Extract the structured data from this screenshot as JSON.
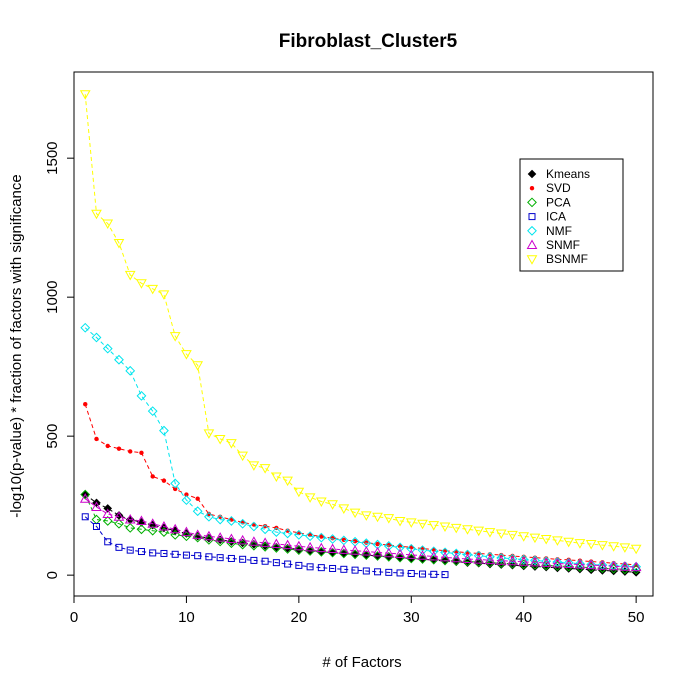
{
  "chart_data": {
    "type": "line",
    "title": "Fibroblast_Cluster5",
    "xlabel": "# of Factors",
    "ylabel": "-log10(p-value) * fraction of factors with significance",
    "xlim": [
      0,
      51.5
    ],
    "ylim": [
      -75,
      1810
    ],
    "xticks": [
      0,
      10,
      20,
      30,
      40,
      50
    ],
    "yticks": [
      0,
      500,
      1000,
      1500
    ],
    "grid": false,
    "legend_position": "top-right",
    "series": [
      {
        "name": "Kmeans",
        "color": "#000000",
        "marker": "diamond",
        "x": [
          1,
          2,
          3,
          4,
          5,
          6,
          7,
          8,
          9,
          10,
          11,
          12,
          13,
          14,
          15,
          16,
          17,
          18,
          19,
          20,
          21,
          22,
          23,
          24,
          25,
          26,
          27,
          28,
          29,
          30,
          31,
          32,
          33,
          34,
          35,
          36,
          37,
          38,
          39,
          40,
          41,
          42,
          43,
          44,
          45,
          46,
          47,
          48,
          49,
          50
        ],
        "values": [
          290,
          260,
          240,
          215,
          200,
          190,
          180,
          170,
          160,
          150,
          140,
          133,
          127,
          121,
          116,
          111,
          106,
          101,
          97,
          93,
          89,
          85,
          81,
          78,
          75,
          72,
          69,
          66,
          63,
          60,
          57,
          54,
          51,
          48,
          45,
          43,
          40,
          38,
          36,
          33,
          31,
          29,
          26,
          24,
          22,
          19,
          17,
          15,
          13,
          10
        ]
      },
      {
        "name": "SVD",
        "color": "#ff0000",
        "marker": "dot",
        "x": [
          1,
          2,
          3,
          4,
          5,
          6,
          7,
          8,
          9,
          10,
          11,
          12,
          13,
          14,
          15,
          16,
          17,
          18,
          19,
          20,
          21,
          22,
          23,
          24,
          25,
          26,
          27,
          28,
          29,
          30,
          31,
          32,
          33,
          34,
          35,
          36,
          37,
          38,
          39,
          40,
          41,
          42,
          43,
          44,
          45,
          46,
          47,
          48,
          49,
          50
        ],
        "values": [
          615,
          490,
          465,
          455,
          445,
          440,
          355,
          340,
          310,
          290,
          275,
          220,
          210,
          200,
          190,
          182,
          176,
          170,
          160,
          152,
          145,
          139,
          133,
          127,
          122,
          117,
          112,
          108,
          104,
          100,
          96,
          92,
          88,
          84,
          81,
          78,
          75,
          72,
          69,
          66,
          63,
          60,
          57,
          55,
          52,
          49,
          46,
          43,
          40,
          37
        ]
      },
      {
        "name": "PCA",
        "color": "#00b000",
        "marker": "diamond-open",
        "x": [
          1,
          2,
          3,
          4,
          5,
          6,
          7,
          8,
          9,
          10,
          11,
          12,
          13,
          14,
          15,
          16,
          17,
          18,
          19,
          20,
          21,
          22,
          23,
          24,
          25,
          26,
          27,
          28,
          29,
          30,
          31,
          32,
          33,
          34,
          35,
          36,
          37,
          38,
          39,
          40,
          41,
          42,
          43,
          44,
          45,
          46,
          47,
          48,
          49,
          50
        ],
        "values": [
          290,
          200,
          195,
          185,
          170,
          165,
          160,
          155,
          145,
          140,
          135,
          127,
          121,
          115,
          110,
          106,
          102,
          98,
          94,
          90,
          87,
          84,
          81,
          78,
          75,
          72,
          69,
          66,
          63,
          60,
          58,
          56,
          53,
          51,
          49,
          47,
          45,
          43,
          41,
          39,
          37,
          35,
          33,
          31,
          29,
          27,
          25,
          23,
          21,
          20
        ]
      },
      {
        "name": "ICA",
        "color": "#0000cc",
        "marker": "square-open",
        "x": [
          1,
          2,
          3,
          4,
          5,
          6,
          7,
          8,
          9,
          10,
          11,
          12,
          13,
          14,
          15,
          16,
          17,
          18,
          19,
          20,
          21,
          22,
          23,
          24,
          25,
          26,
          27,
          28,
          29,
          30,
          31,
          32,
          33
        ],
        "values": [
          210,
          175,
          120,
          100,
          90,
          85,
          80,
          78,
          75,
          72,
          70,
          66,
          63,
          60,
          57,
          53,
          50,
          45,
          40,
          35,
          30,
          27,
          24,
          21,
          18,
          15,
          12,
          10,
          8,
          6,
          4,
          3,
          2
        ]
      },
      {
        "name": "NMF",
        "color": "#00e5ee",
        "marker": "diamond-open",
        "x": [
          1,
          2,
          3,
          4,
          5,
          6,
          7,
          8,
          9,
          10,
          11,
          12,
          13,
          14,
          15,
          16,
          17,
          18,
          19,
          20,
          21,
          22,
          23,
          24,
          25,
          26,
          27,
          28,
          29,
          30,
          31,
          32,
          33,
          34,
          35,
          36,
          37,
          38,
          39,
          40,
          41,
          42,
          43,
          44,
          45,
          46,
          47,
          48,
          49,
          50
        ],
        "values": [
          890,
          855,
          815,
          775,
          735,
          645,
          590,
          520,
          330,
          270,
          230,
          210,
          200,
          195,
          185,
          175,
          165,
          155,
          150,
          145,
          140,
          135,
          130,
          125,
          120,
          115,
          110,
          105,
          100,
          95,
          90,
          86,
          82,
          78,
          74,
          70,
          66,
          62,
          59,
          56,
          53,
          50,
          47,
          44,
          41,
          38,
          36,
          34,
          32,
          30
        ]
      },
      {
        "name": "SNMF",
        "color": "#cc00cc",
        "marker": "triangle-open",
        "x": [
          1,
          2,
          3,
          4,
          5,
          6,
          7,
          8,
          9,
          10,
          11,
          12,
          13,
          14,
          15,
          16,
          17,
          18,
          19,
          20,
          21,
          22,
          23,
          24,
          25,
          26,
          27,
          28,
          29,
          30,
          31,
          32,
          33,
          34,
          35,
          36,
          37,
          38,
          39,
          40,
          41,
          42,
          43,
          44,
          45,
          46,
          47,
          48,
          49,
          50
        ],
        "values": [
          275,
          245,
          220,
          210,
          200,
          195,
          185,
          175,
          165,
          155,
          145,
          140,
          135,
          130,
          125,
          120,
          116,
          112,
          108,
          104,
          100,
          97,
          94,
          91,
          88,
          85,
          82,
          79,
          76,
          73,
          70,
          67,
          64,
          61,
          58,
          56,
          54,
          52,
          50,
          48,
          46,
          44,
          42,
          40,
          38,
          36,
          34,
          32,
          30,
          29
        ]
      },
      {
        "name": "BSNMF",
        "color": "#ffff00",
        "marker": "triangle-down-open",
        "x": [
          1,
          2,
          3,
          4,
          5,
          6,
          7,
          8,
          9,
          10,
          11,
          12,
          13,
          14,
          15,
          16,
          17,
          18,
          19,
          20,
          21,
          22,
          23,
          24,
          25,
          26,
          27,
          28,
          29,
          30,
          31,
          32,
          33,
          34,
          35,
          36,
          37,
          38,
          39,
          40,
          41,
          42,
          43,
          44,
          45,
          46,
          47,
          48,
          49,
          50
        ],
        "values": [
          1730,
          1300,
          1265,
          1195,
          1080,
          1050,
          1030,
          1010,
          860,
          795,
          755,
          510,
          490,
          475,
          430,
          395,
          385,
          355,
          340,
          300,
          280,
          265,
          255,
          240,
          225,
          215,
          210,
          205,
          195,
          190,
          185,
          180,
          175,
          170,
          165,
          160,
          155,
          150,
          145,
          140,
          135,
          130,
          125,
          120,
          115,
          112,
          108,
          104,
          100,
          95
        ]
      }
    ]
  }
}
